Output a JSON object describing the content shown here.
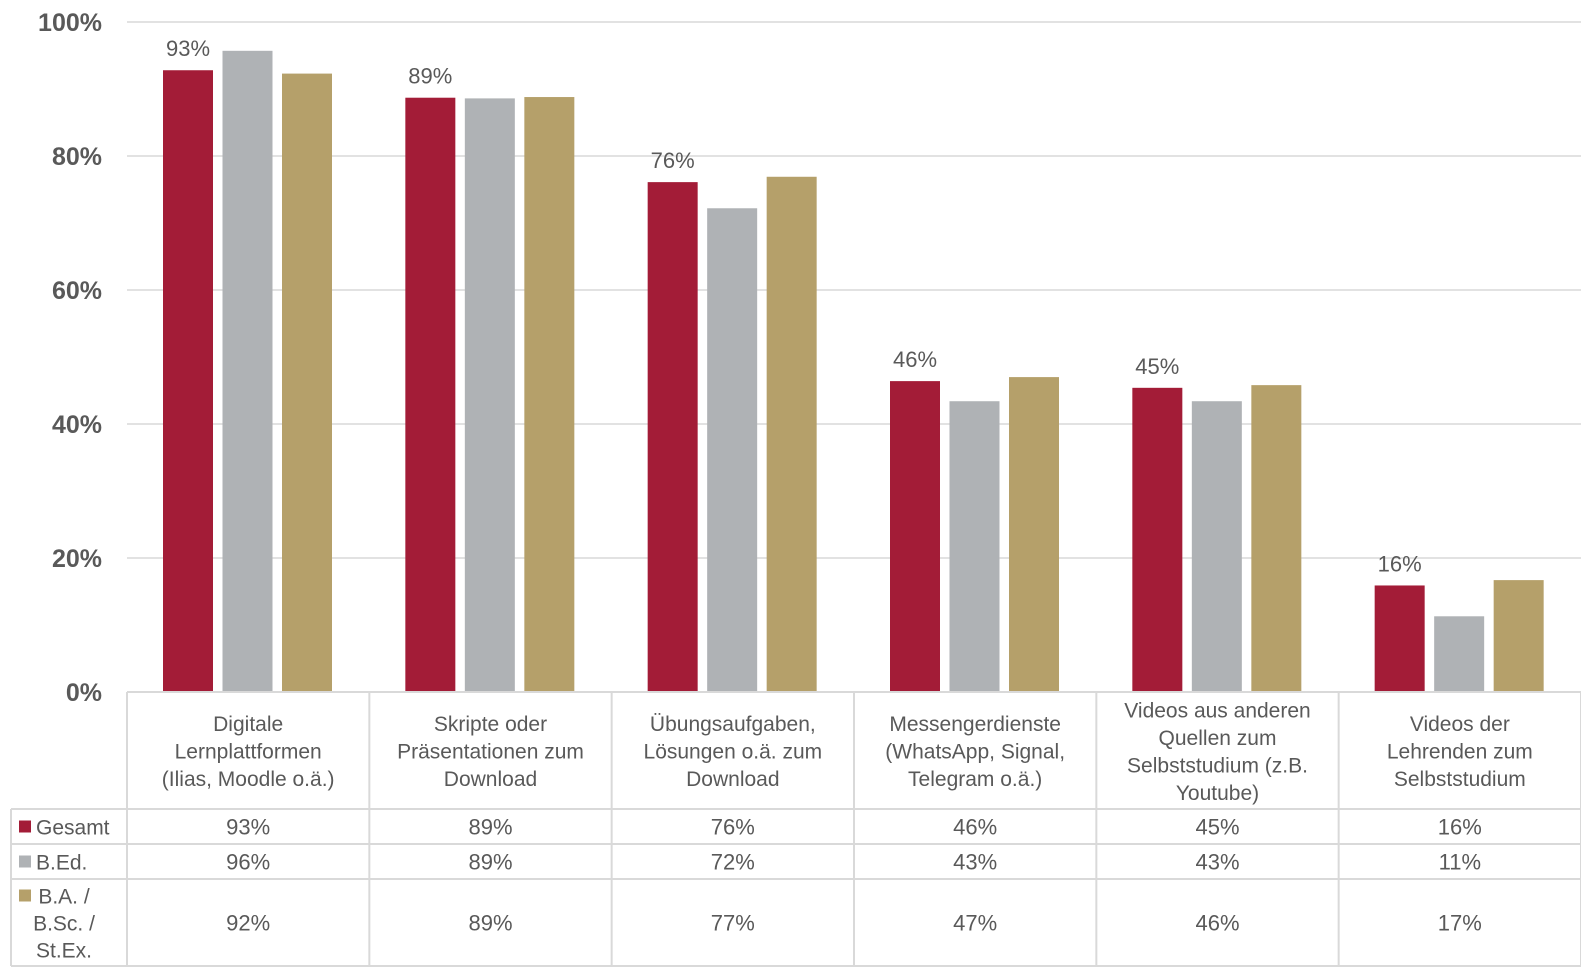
{
  "chart_data": {
    "type": "bar",
    "title": "",
    "xlabel": "",
    "ylabel": "",
    "ylim": [
      0,
      100
    ],
    "yticks": [
      "0%",
      "20%",
      "40%",
      "60%",
      "80%",
      "100%"
    ],
    "grid": true,
    "legend": "data-table-left",
    "categories": [
      [
        "Digitale",
        "Lernplattformen",
        "(Ilias, Moodle o.ä.)"
      ],
      [
        "Skripte oder",
        "Präsentationen zum",
        "Download"
      ],
      [
        "Übungsaufgaben,",
        "Lösungen o.ä. zum",
        "Download"
      ],
      [
        "Messengerdienste",
        "(WhatsApp, Signal,",
        "Telegram o.ä.)"
      ],
      [
        "Videos aus anderen",
        "Quellen zum",
        "Selbststudium (z.B.",
        "Youtube)"
      ],
      [
        "Videos der",
        "Lehrenden zum",
        "Selbststudium"
      ]
    ],
    "series": [
      {
        "name": "Gesamt",
        "name_lines": [
          "Gesamt"
        ],
        "color": "#a31c37",
        "values": [
          92.8,
          88.7,
          76.1,
          46.4,
          45.4,
          15.9
        ],
        "labels": [
          "93%",
          "89%",
          "76%",
          "46%",
          "45%",
          "16%"
        ],
        "data_labels": [
          "93%",
          "89%",
          "76%",
          "46%",
          "45%",
          "16%"
        ]
      },
      {
        "name": "B.Ed.",
        "name_lines": [
          "B.Ed."
        ],
        "color": "#afb2b5",
        "values": [
          95.7,
          88.6,
          72.2,
          43.4,
          43.4,
          11.3
        ],
        "labels": [
          "96%",
          "89%",
          "72%",
          "43%",
          "43%",
          "11%"
        ],
        "data_labels": []
      },
      {
        "name": "B.A. / B.Sc. / St.Ex.",
        "name_lines": [
          "B.A. /",
          "B.Sc. /",
          "St.Ex."
        ],
        "color": "#b5a06a",
        "values": [
          92.3,
          88.8,
          76.9,
          47.0,
          45.8,
          16.7
        ],
        "labels": [
          "92%",
          "89%",
          "77%",
          "47%",
          "46%",
          "17%"
        ],
        "data_labels": []
      }
    ]
  }
}
